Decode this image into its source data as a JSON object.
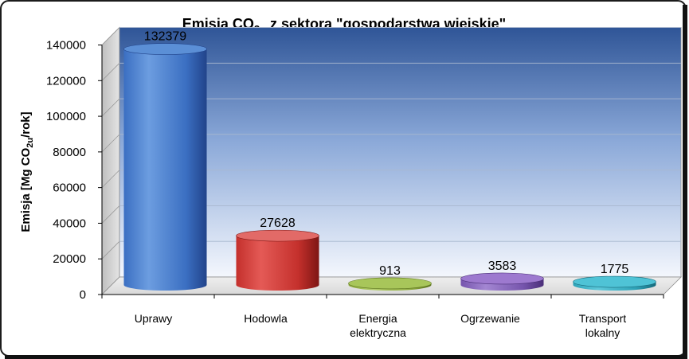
{
  "chart_data": {
    "type": "bar",
    "title": {
      "prefix": "Emisja CO",
      "sub": "2u",
      "suffix": " z sektora \"gospodarstwa wiejskie\""
    },
    "ylabel": {
      "prefix": "Emisja [Mg CO",
      "sub": "2u",
      "suffix": "/rok]"
    },
    "xlabel": "",
    "categories": [
      [
        "Uprawy"
      ],
      [
        "Hodowla"
      ],
      [
        "Energia",
        "elektryczna"
      ],
      [
        "Ogrzewanie"
      ],
      [
        "Transport",
        "lokalny"
      ]
    ],
    "values": [
      132379,
      27628,
      913,
      3583,
      1775
    ],
    "data_labels": [
      "132379",
      "27628",
      "913",
      "3583",
      "1775"
    ],
    "ylim": [
      0,
      140000
    ],
    "yticks": [
      0,
      20000,
      40000,
      60000,
      80000,
      100000,
      120000,
      140000
    ],
    "ytick_labels": [
      "0",
      "20000",
      "40000",
      "60000",
      "80000",
      "100000",
      "120000",
      "140000"
    ],
    "grid": true,
    "legend": "none",
    "colors": {
      "bars": [
        {
          "top": "#5b8fd6",
          "light": "#6c9de0",
          "mid": "#3b6fc2",
          "dark": "#21438a"
        },
        {
          "top": "#e26a67",
          "light": "#e45a56",
          "mid": "#c4302c",
          "dark": "#7e1614"
        },
        {
          "top": "#a8c65a",
          "light": "#b1cc66",
          "mid": "#8eab3e",
          "dark": "#5d7420"
        },
        {
          "top": "#9d79cf",
          "light": "#a386d2",
          "mid": "#7655ad",
          "dark": "#4a2e78"
        },
        {
          "top": "#4fc3d6",
          "light": "#5dc8da",
          "mid": "#2ea3b8",
          "dark": "#176a7b"
        }
      ],
      "wall_top": "#2f5597",
      "wall_bottom": "#f4f7fd",
      "frame_border": "#1b1b1b"
    }
  }
}
